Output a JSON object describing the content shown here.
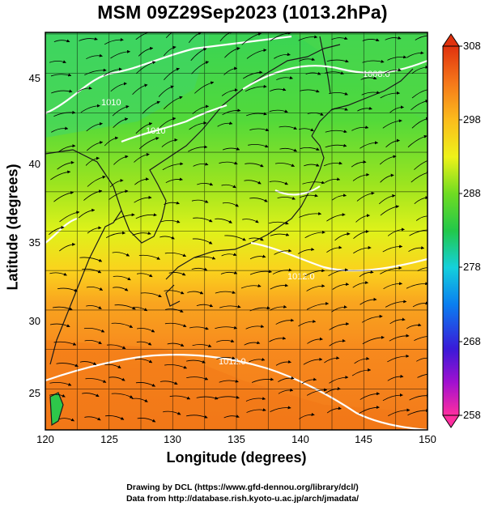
{
  "title": "MSM 09Z29Sep2023 (1013.2hPa)",
  "axes": {
    "xlabel": "Longitude (degrees)",
    "ylabel": "Latitude  (degrees)",
    "xticks": [
      "120",
      "125",
      "130",
      "135",
      "140",
      "145",
      "150"
    ],
    "yticks": [
      "25",
      "30",
      "35",
      "40",
      "45"
    ],
    "xlim": [
      120,
      150
    ],
    "ylim": [
      22.4,
      47.6
    ]
  },
  "colorbar": {
    "ticks": [
      "308",
      "298",
      "288",
      "278",
      "268",
      "258"
    ],
    "range": [
      258,
      308
    ],
    "colors": [
      "#ff2ea0",
      "#7a00cc",
      "#1a23d6",
      "#0a8cf0",
      "#14d0dc",
      "#27c646",
      "#8de21f",
      "#eef219",
      "#fbc01c",
      "#fa8a1e",
      "#f06414",
      "#e0320e"
    ]
  },
  "contours": {
    "color": "#ffffff",
    "labels": [
      "1008.0",
      "1012.0",
      "1012.0",
      "1010",
      "1010"
    ]
  },
  "credits": {
    "line1": "Drawing by DCL (https://www.gfd-dennou.org/library/dcl/)",
    "line2": "Data from http://database.rish.kyoto-u.ac.jp/arch/jmadata/"
  }
}
